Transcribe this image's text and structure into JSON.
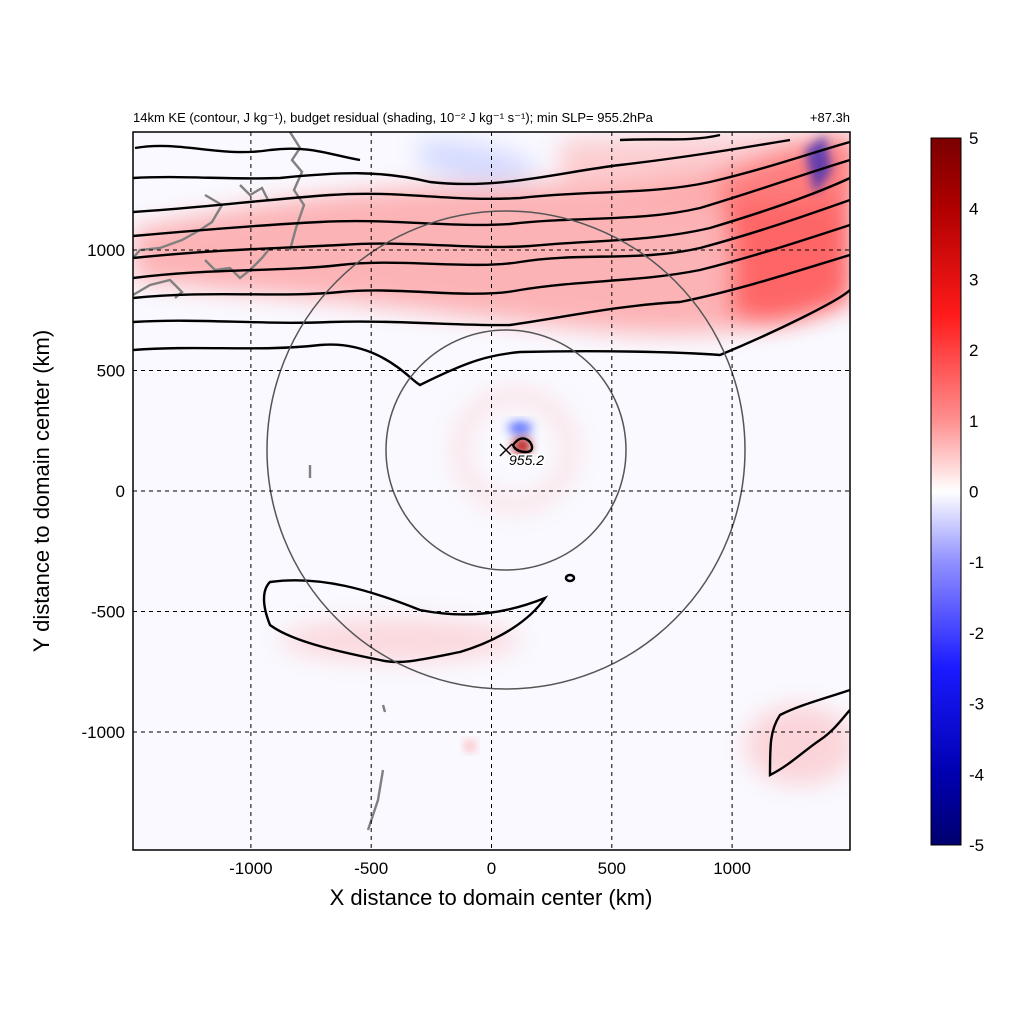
{
  "chart_data": {
    "type": "heatmap",
    "title": "14km KE (contour, J kg⁻¹), budget residual (shading, 10⁻² J kg⁻¹ s⁻¹); min SLP= 955.2hPa",
    "title_right": "+87.3h",
    "xlabel": "X distance to domain center (km)",
    "ylabel": "Y distance to domain center (km)",
    "xlim": [
      -1490,
      1490
    ],
    "ylim": [
      -1490,
      1490
    ],
    "xticks": [
      -1000,
      -500,
      0,
      500,
      1000
    ],
    "xtick_labels": [
      "-1000",
      "-500",
      "0",
      "500",
      "1000"
    ],
    "yticks": [
      -1000,
      -500,
      0,
      500,
      1000
    ],
    "ytick_labels": [
      "-1000",
      "-500",
      "0",
      "500",
      "1000"
    ],
    "grid": true,
    "colorbar": {
      "min": -5,
      "max": 5,
      "ticks": [
        5,
        4,
        3,
        2,
        1,
        0,
        -1,
        -2,
        -3,
        -4,
        -5
      ],
      "tick_labels": [
        "5",
        "4",
        "3",
        "2",
        "1",
        "0",
        "-1",
        "-2",
        "-3",
        "-4",
        "-5"
      ],
      "colormap": "blue-white-red",
      "colors": [
        "#00008b",
        "#0000ff",
        "#ffffff",
        "#ff0000",
        "#800000"
      ]
    },
    "storm_center": {
      "x": 60,
      "y": 170,
      "label": "955.2"
    },
    "range_circles_km": [
      500,
      1000
    ],
    "annotations": [
      "955.2"
    ]
  }
}
